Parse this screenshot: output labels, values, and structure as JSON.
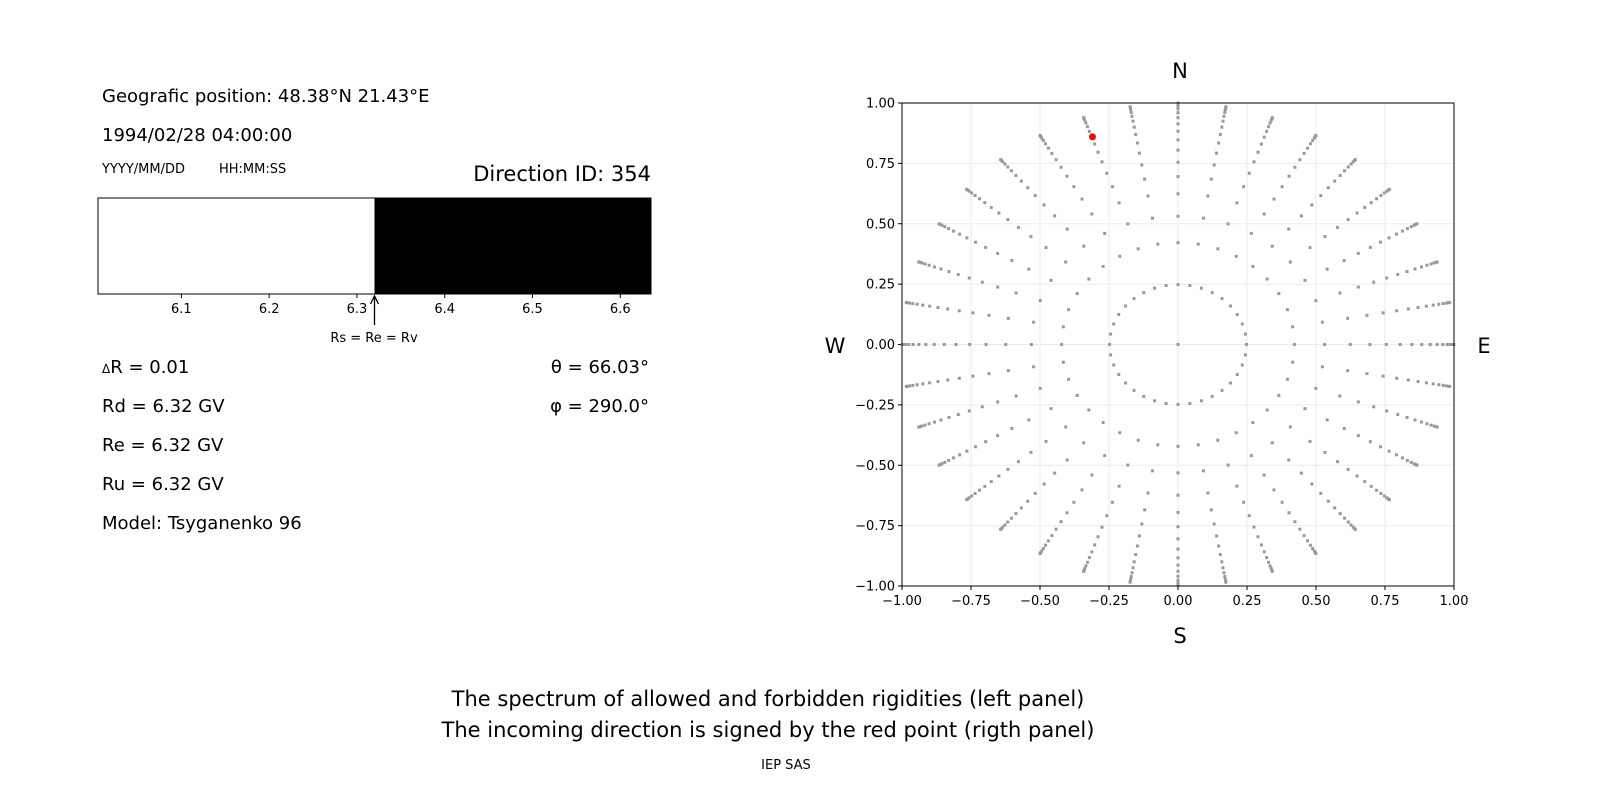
{
  "left_panel": {
    "position_label": "Geografic position: 48.38°N 21.43°E",
    "datetime": "1994/02/28 04:00:00",
    "date_format": "YYYY/MM/DD",
    "time_format": "HH:MM:SS",
    "direction_id": "Direction ID: 354",
    "cutoff_label": "Rs = Re = Rv",
    "delta_r": "R = 0.01",
    "delta_symbol": "Δ",
    "theta": "θ = 66.03°",
    "phi": "φ = 290.0°",
    "rd": "Rd = 6.32 GV",
    "re": "Re = 6.32 GV",
    "ru": "Ru = 6.32 GV",
    "model": "Model: Tsyganenko 96"
  },
  "chart_data": [
    {
      "type": "bar",
      "description_role": "rigidity spectrum",
      "xlim": [
        6.005,
        6.635
      ],
      "xticks": [
        "6.1",
        "6.2",
        "6.3",
        "6.4",
        "6.5",
        "6.6"
      ],
      "segments": [
        {
          "from": 6.005,
          "to": 6.32,
          "color": "#ffffff"
        },
        {
          "from": 6.32,
          "to": 6.635,
          "color": "#000000"
        }
      ],
      "cutoff": 6.32
    },
    {
      "type": "scatter",
      "xlim": [
        -1,
        1
      ],
      "ylim": [
        -1,
        1
      ],
      "xticks": [
        "−1.00",
        "−0.75",
        "−0.50",
        "−0.25",
        "0.00",
        "0.25",
        "0.50",
        "0.75",
        "1.00"
      ],
      "yticks": [
        "−1.00",
        "−0.75",
        "−0.50",
        "−0.25",
        "0.00",
        "0.25",
        "0.50",
        "0.75",
        "1.00"
      ],
      "grid": true,
      "compass": {
        "top": "N",
        "bottom": "S",
        "left": "W",
        "right": "E"
      },
      "point_color": "#999999",
      "highlight_color": "#ff0000",
      "center_point": true,
      "ring_zenith_deg": [
        14.36,
        24.95,
        32.09,
        38.62,
        44.05,
        48.99,
        53.58,
        57.91,
        62.03,
        66.03,
        69.88,
        73.68,
        77.35,
        81.02,
        84.61,
        88.21
      ],
      "azimuth_step_deg": 10,
      "highlight": {
        "theta_deg": 66.03,
        "phi_deg": 290.0,
        "x": -0.31,
        "y": 0.86
      }
    }
  ],
  "footer": {
    "line1": "The spectrum of allowed and forbidden rigidities (left panel)",
    "line2": "The incoming direction is signed by the red point (rigth panel)",
    "credit": "IEP SAS"
  }
}
